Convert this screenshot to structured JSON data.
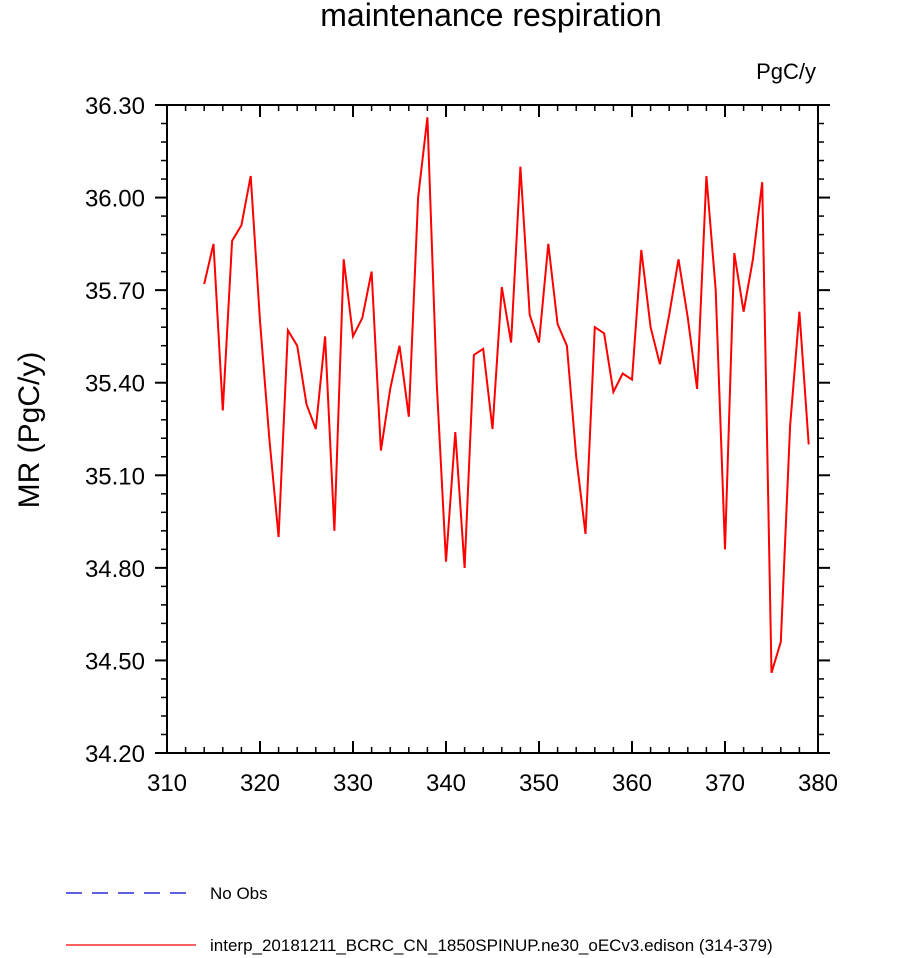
{
  "chart_data": {
    "type": "line",
    "title": "maintenance respiration",
    "units_label": "PgC/y",
    "xlabel": "",
    "ylabel": "MR  (PgC/y)",
    "xlim": [
      310,
      380
    ],
    "ylim": [
      34.2,
      36.3
    ],
    "x_ticks": [
      "310",
      "320",
      "330",
      "340",
      "350",
      "360",
      "370",
      "380"
    ],
    "y_ticks": [
      "34.20",
      "34.50",
      "34.80",
      "35.10",
      "35.40",
      "35.70",
      "36.00",
      "36.30"
    ],
    "grid": false,
    "legend_position": "bottom-left",
    "legend": [
      {
        "label": "No Obs",
        "color": "#0000cc",
        "style": "dashed"
      },
      {
        "label": "interp_20181211_BCRC_CN_1850SPINUP.ne30_oECv3.edison (314-379)",
        "color": "#ff0000",
        "style": "solid"
      }
    ],
    "series": [
      {
        "name": "interp_20181211_BCRC_CN_1850SPINUP.ne30_oECv3.edison (314-379)",
        "color": "#ff0000",
        "x": [
          314,
          315,
          316,
          317,
          318,
          319,
          320,
          321,
          322,
          323,
          324,
          325,
          326,
          327,
          328,
          329,
          330,
          331,
          332,
          333,
          334,
          335,
          336,
          337,
          338,
          339,
          340,
          341,
          342,
          343,
          344,
          345,
          346,
          347,
          348,
          349,
          350,
          351,
          352,
          353,
          354,
          355,
          356,
          357,
          358,
          359,
          360,
          361,
          362,
          363,
          364,
          365,
          366,
          367,
          368,
          369,
          370,
          371,
          372,
          373,
          374,
          375,
          376,
          377,
          378,
          379
        ],
        "y": [
          35.72,
          35.85,
          35.31,
          35.86,
          35.91,
          36.07,
          35.6,
          35.22,
          34.9,
          35.57,
          35.52,
          35.33,
          35.25,
          35.55,
          34.92,
          35.8,
          35.55,
          35.61,
          35.76,
          35.18,
          35.38,
          35.52,
          35.29,
          36.0,
          36.26,
          35.4,
          34.82,
          35.24,
          34.8,
          35.49,
          35.51,
          35.25,
          35.71,
          35.53,
          36.1,
          35.62,
          35.53,
          35.85,
          35.59,
          35.52,
          35.16,
          34.91,
          35.58,
          35.56,
          35.37,
          35.43,
          35.41,
          35.83,
          35.58,
          35.46,
          35.62,
          35.8,
          35.61,
          35.38,
          36.07,
          35.7,
          34.86,
          35.82,
          35.63,
          35.8,
          36.05,
          34.46,
          34.56,
          35.26,
          35.63,
          35.2
        ]
      }
    ]
  }
}
